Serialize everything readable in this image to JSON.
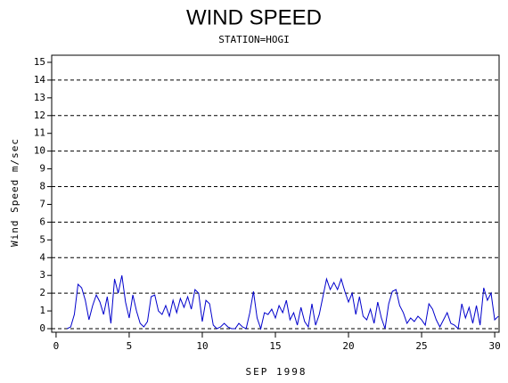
{
  "chart_data": {
    "type": "line",
    "title": "WIND SPEED",
    "subtitle": "STATION=HOGI",
    "xlabel": "SEP 1998",
    "ylabel": "Wind Speed m/sec",
    "x": [
      0.75,
      1,
      1.25,
      1.5,
      1.75,
      2,
      2.25,
      2.5,
      2.75,
      3,
      3.25,
      3.5,
      3.75,
      4,
      4.25,
      4.5,
      4.75,
      5,
      5.25,
      5.5,
      5.75,
      6,
      6.25,
      6.5,
      6.75,
      7,
      7.25,
      7.5,
      7.75,
      8,
      8.25,
      8.5,
      8.75,
      9,
      9.25,
      9.5,
      9.75,
      10,
      10.25,
      10.5,
      10.75,
      11,
      11.25,
      11.5,
      11.75,
      12,
      12.25,
      12.5,
      12.75,
      13,
      13.25,
      13.5,
      13.75,
      14,
      14.25,
      14.5,
      14.75,
      15,
      15.25,
      15.5,
      15.75,
      16,
      16.25,
      16.5,
      16.75,
      17,
      17.25,
      17.5,
      17.75,
      18,
      18.25,
      18.5,
      18.75,
      19,
      19.25,
      19.5,
      19.75,
      20,
      20.25,
      20.5,
      20.75,
      21,
      21.25,
      21.5,
      21.75,
      22,
      22.25,
      22.5,
      22.75,
      23,
      23.25,
      23.5,
      23.75,
      24,
      24.25,
      24.5,
      24.75,
      25,
      25.25,
      25.5,
      25.75,
      26,
      26.25,
      26.5,
      26.75,
      27,
      27.25,
      27.5,
      27.75,
      28,
      28.25,
      28.5,
      28.75,
      29,
      29.25,
      29.5,
      29.75,
      30,
      30.25
    ],
    "series": [
      {
        "name": "Wind Speed",
        "color": "#0000cc",
        "values": [
          0,
          0.1,
          0.8,
          2.5,
          2.3,
          1.6,
          0.5,
          1.3,
          1.9,
          1.5,
          0.8,
          1.8,
          0.3,
          2.8,
          2.0,
          3.0,
          1.5,
          0.6,
          1.9,
          1.0,
          0.3,
          0.1,
          0.4,
          1.8,
          1.9,
          1.0,
          0.8,
          1.3,
          0.7,
          1.6,
          0.9,
          1.7,
          1.2,
          1.8,
          1.1,
          2.2,
          2.0,
          0.4,
          1.6,
          1.4,
          0.2,
          0,
          0.1,
          0.3,
          0.1,
          0,
          0,
          0.3,
          0.1,
          0,
          0.9,
          2.1,
          0.6,
          0,
          0.9,
          0.8,
          1.1,
          0.6,
          1.3,
          0.9,
          1.6,
          0.5,
          0.9,
          0.2,
          1.2,
          0.4,
          0.1,
          1.4,
          0.2,
          0.8,
          1.8,
          2.8,
          2.2,
          2.6,
          2.2,
          2.8,
          2.1,
          1.5,
          2.0,
          0.8,
          1.8,
          0.7,
          0.5,
          1.1,
          0.3,
          1.5,
          0.6,
          0,
          1.4,
          2.1,
          2.2,
          1.3,
          0.9,
          0.3,
          0.6,
          0.4,
          0.7,
          0.5,
          0.2,
          1.4,
          1.1,
          0.5,
          0.1,
          0.5,
          0.9,
          0.3,
          0.2,
          0,
          1.4,
          0.6,
          1.2,
          0.3,
          1.3,
          0.2,
          2.3,
          1.6,
          2.0,
          0.5,
          0.7
        ]
      }
    ],
    "xlim": [
      -0.3,
      30.3
    ],
    "xticks": [
      0,
      5,
      10,
      15,
      20,
      25,
      30
    ],
    "ylim": [
      -0.2,
      15.4
    ],
    "yticks": [
      0,
      1,
      2,
      3,
      4,
      5,
      6,
      7,
      8,
      9,
      10,
      11,
      12,
      13,
      14,
      15
    ],
    "grid_lines": [
      0,
      2,
      4,
      6,
      8,
      10,
      12,
      14
    ]
  }
}
